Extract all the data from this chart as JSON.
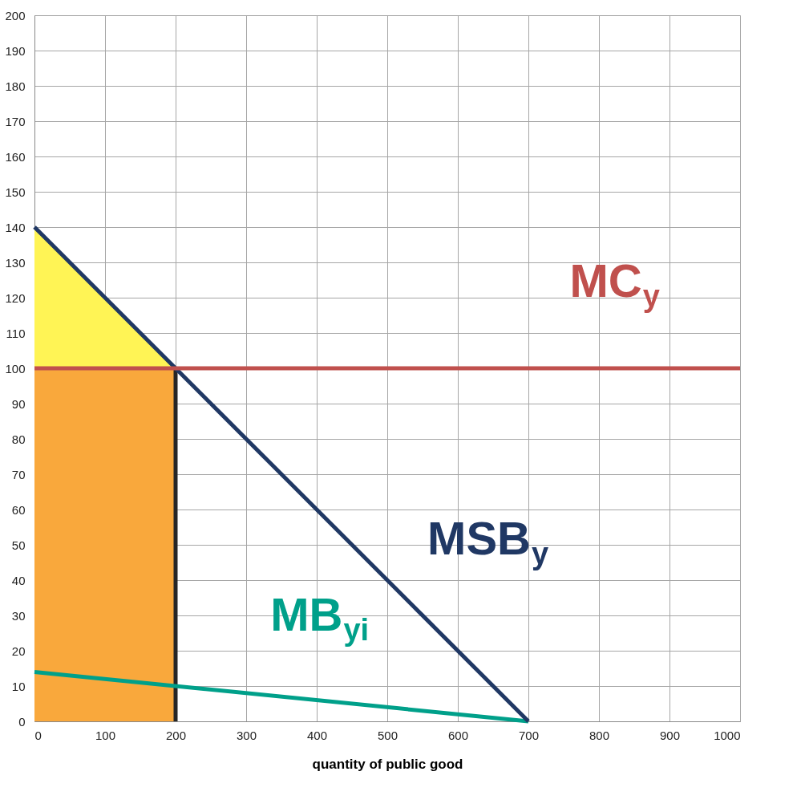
{
  "chart_data": {
    "type": "line",
    "xlabel": "quantity of public good",
    "xlim": [
      0,
      1000
    ],
    "xticks": [
      0,
      100,
      200,
      300,
      400,
      500,
      600,
      700,
      800,
      900,
      1000
    ],
    "ylim": [
      0,
      200
    ],
    "yticks": [
      0,
      10,
      20,
      30,
      40,
      50,
      60,
      70,
      80,
      90,
      100,
      110,
      120,
      130,
      140,
      150,
      160,
      170,
      180,
      190,
      200
    ],
    "grid": true,
    "legend": false,
    "series": [
      {
        "type": "area",
        "color": "#fff455",
        "x": [
          0,
          200
        ],
        "values": [
          140,
          100
        ]
      },
      {
        "type": "area",
        "color": "#f9a83c",
        "x": [
          0,
          200
        ],
        "values": [
          100,
          100
        ]
      },
      {
        "color": "#262626",
        "x": [
          200,
          200
        ],
        "values": [
          0,
          100
        ]
      },
      {
        "name": "MB$_{yi}$",
        "color": "#00a08a",
        "x": [
          0,
          700
        ],
        "values": [
          14,
          0
        ]
      },
      {
        "name": "MSB$_{y}$",
        "color": "#203864",
        "x": [
          0,
          700
        ],
        "values": [
          140,
          0
        ]
      },
      {
        "name": "MC$_{y}$",
        "color": "#c0504d",
        "x": [
          0,
          1000
        ],
        "values": [
          100,
          100
        ]
      }
    ]
  }
}
